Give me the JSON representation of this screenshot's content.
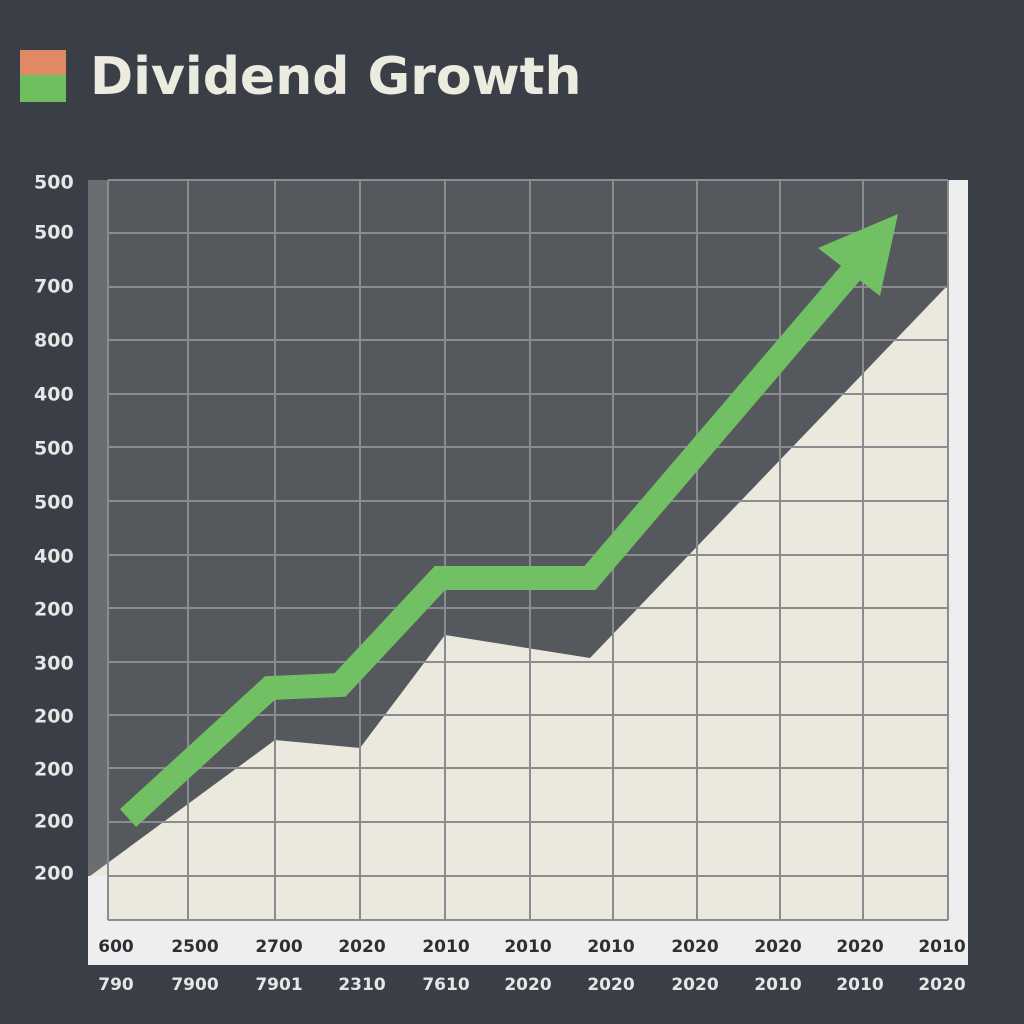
{
  "title": "Dividend Growth",
  "y_axis_labels": [
    "500",
    "500",
    "700",
    "800",
    "400",
    "500",
    "500",
    "400",
    "200",
    "300",
    "200",
    "200",
    "200",
    "200"
  ],
  "x_axis_labels_top": [
    "600",
    "2500",
    "2700",
    "2020",
    "2010",
    "2010",
    "2010",
    "2020",
    "2020",
    "2020",
    "2010"
  ],
  "x_axis_labels_bottom": [
    "790",
    "7900",
    "7901",
    "2310",
    "7610",
    "2020",
    "2020",
    "2020",
    "2010",
    "2010",
    "2020"
  ]
}
